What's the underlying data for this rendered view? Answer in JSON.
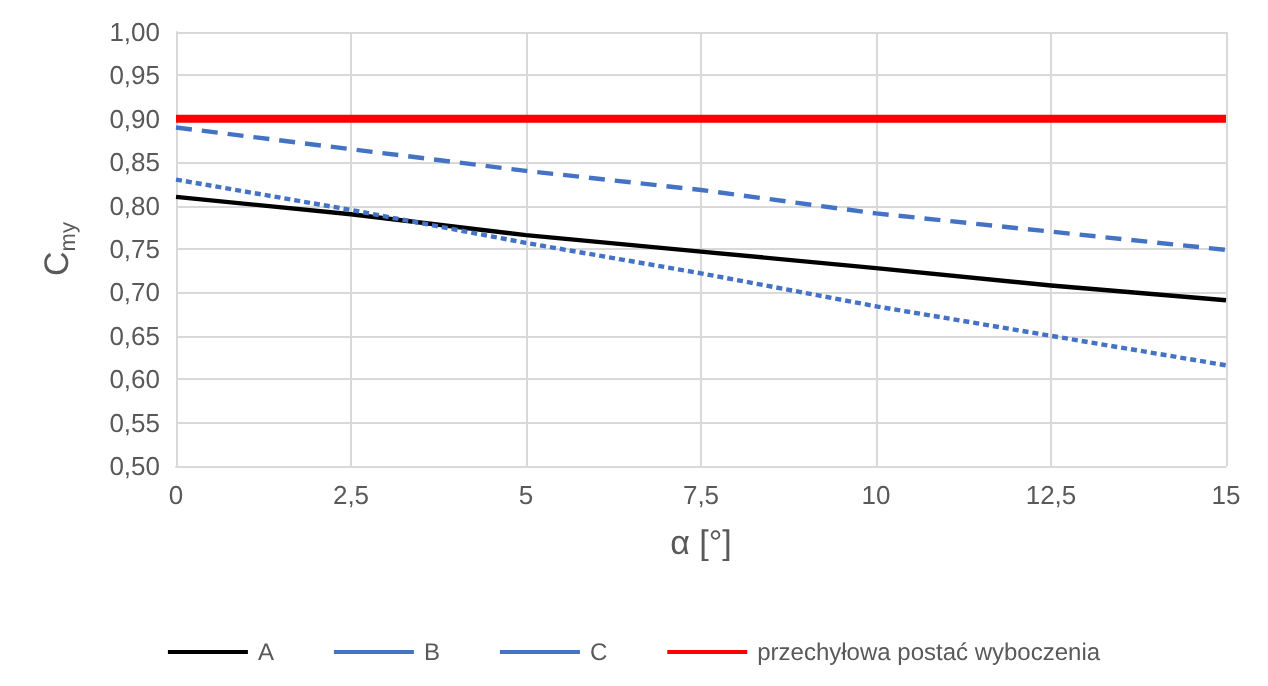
{
  "chart_data": {
    "type": "line",
    "xlabel": "α [°]",
    "ylabel": "C$_{my}$",
    "x": [
      0,
      2.5,
      5,
      7.5,
      10,
      12.5,
      15
    ],
    "series": [
      {
        "name": "A",
        "color": "#000000",
        "line_style": "solid",
        "values": [
          0.81,
          0.79,
          0.766,
          0.747,
          0.728,
          0.708,
          0.691
        ]
      },
      {
        "name": "B",
        "color": "#4472c4",
        "line_style": "dotted",
        "values": [
          0.83,
          0.795,
          0.757,
          0.722,
          0.684,
          0.65,
          0.616
        ]
      },
      {
        "name": "C",
        "color": "#4472c4",
        "line_style": "dashed",
        "values": [
          0.89,
          0.865,
          0.84,
          0.818,
          0.791,
          0.77,
          0.749
        ]
      },
      {
        "name": "przechyłowa postać wyboczenia",
        "color": "#ff0000",
        "line_style": "solid",
        "values": [
          0.9,
          0.9,
          0.9,
          0.9,
          0.9,
          0.9,
          0.9
        ]
      }
    ],
    "xlim": [
      0,
      15
    ],
    "xticks": [
      {
        "value": 0,
        "label": "0"
      },
      {
        "value": 2.5,
        "label": "2,5"
      },
      {
        "value": 5,
        "label": "5"
      },
      {
        "value": 7.5,
        "label": "7,5"
      },
      {
        "value": 10,
        "label": "10"
      },
      {
        "value": 12.5,
        "label": "12,5"
      },
      {
        "value": 15,
        "label": "15"
      }
    ],
    "ylim": [
      0.5,
      1
    ],
    "yticks": [
      {
        "value": 0.5,
        "label": "0,50"
      },
      {
        "value": 0.55,
        "label": "0,55"
      },
      {
        "value": 0.6,
        "label": "0,60"
      },
      {
        "value": 0.65,
        "label": "0,65"
      },
      {
        "value": 0.7,
        "label": "0,70"
      },
      {
        "value": 0.75,
        "label": "0,75"
      },
      {
        "value": 0.8,
        "label": "0,80"
      },
      {
        "value": 0.85,
        "label": "0,85"
      },
      {
        "value": 0.9,
        "label": "0,90"
      },
      {
        "value": 0.95,
        "label": "0,95"
      },
      {
        "value": 1,
        "label": "1,00"
      }
    ],
    "grid": true,
    "legend": "bottom",
    "marker": "none"
  }
}
